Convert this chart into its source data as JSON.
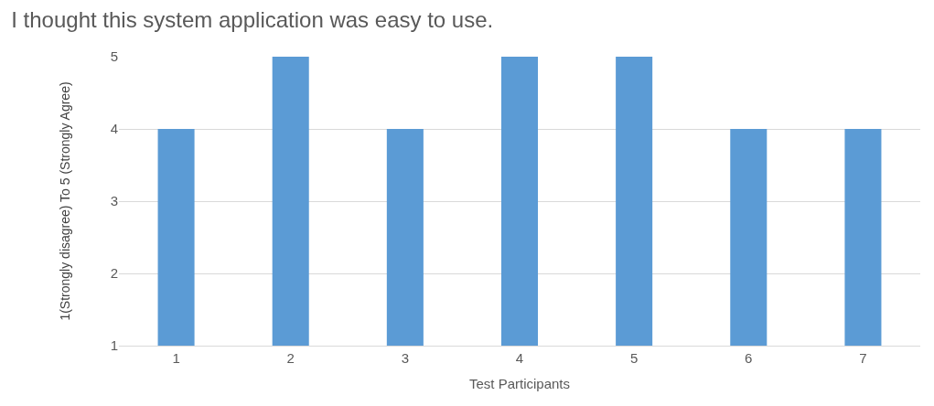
{
  "chart_data": {
    "type": "bar",
    "title": "I thought this system application was easy to use.",
    "xlabel": "Test Participants",
    "ylabel": "1(Strongly disagree) To 5 (Strongly Agree)",
    "categories": [
      "1",
      "2",
      "3",
      "4",
      "5",
      "6",
      "7"
    ],
    "values": [
      4,
      5,
      4,
      5,
      5,
      4,
      4
    ],
    "color": "#5b9bd5",
    "ylim": [
      1,
      5
    ],
    "yticks": [
      1,
      2,
      3,
      4,
      5
    ],
    "grid": "y"
  }
}
